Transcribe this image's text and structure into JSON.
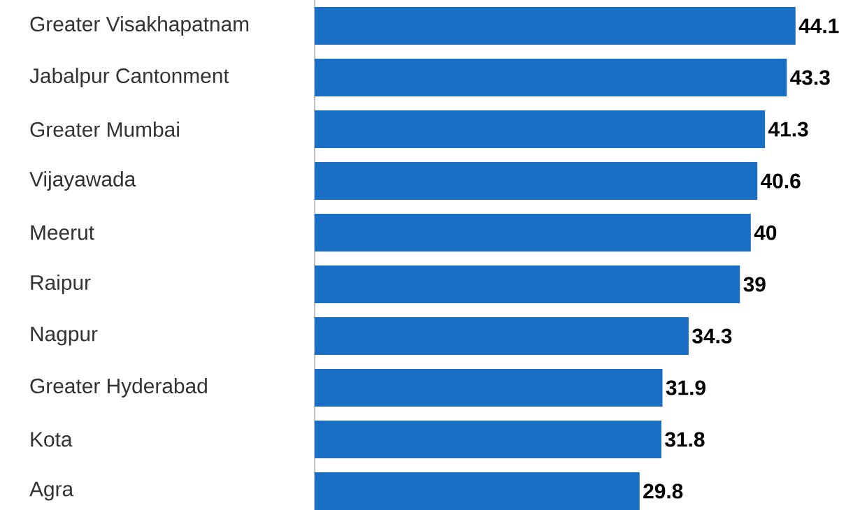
{
  "chart_data": {
    "type": "bar",
    "orientation": "horizontal",
    "categories": [
      "Greater Visakhapatnam",
      "Jabalpur Cantonment",
      "Greater Mumbai",
      "Vijayawada",
      "Meerut",
      "Raipur",
      "Nagpur",
      "Greater Hyderabad",
      "Kota",
      "Agra"
    ],
    "values": [
      44.1,
      43.3,
      41.3,
      40.6,
      40,
      39,
      34.3,
      31.9,
      31.8,
      29.8
    ],
    "color": "#1a6ec4",
    "data_labels": true
  }
}
